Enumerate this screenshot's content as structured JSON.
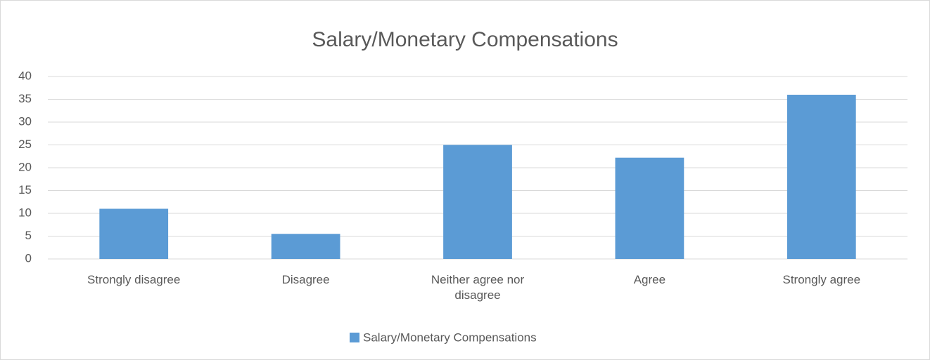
{
  "chart_data": {
    "type": "bar",
    "title": "Salary/Monetary Compensations",
    "categories": [
      "Strongly disagree",
      "Disagree",
      "Neither agree nor disagree",
      "Agree",
      "Strongly agree"
    ],
    "series": [
      {
        "name": "Salary/Monetary Compensations",
        "color": "#5b9bd5",
        "values": [
          11,
          5.5,
          25,
          22.2,
          36
        ]
      }
    ],
    "ylim": [
      0,
      40
    ],
    "yticks": [
      0,
      5,
      10,
      15,
      20,
      25,
      30,
      35,
      40
    ],
    "grid": true,
    "legend": "bottom"
  }
}
